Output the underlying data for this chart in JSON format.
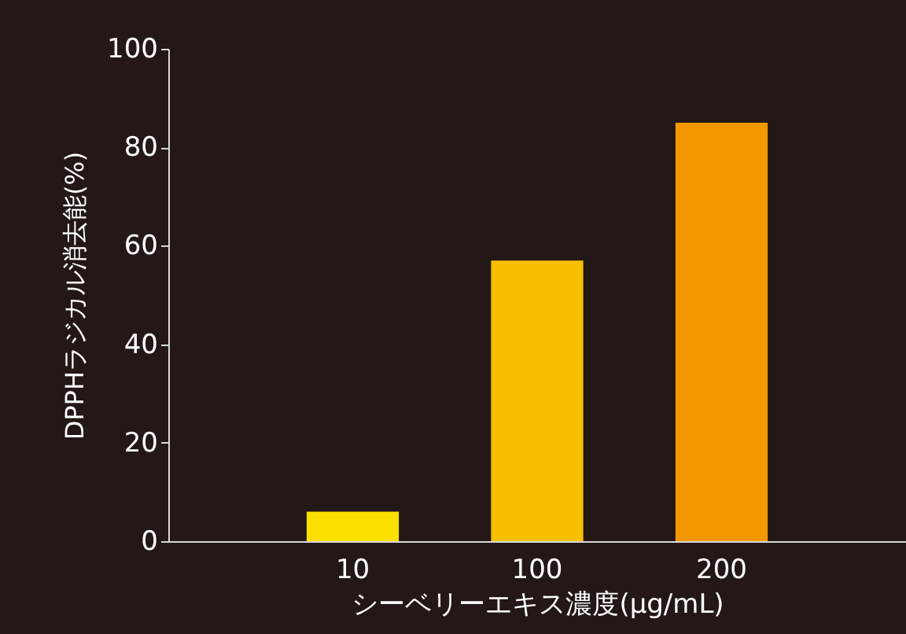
{
  "chart_data": {
    "type": "bar",
    "xlabel": "シーベリーエキス濃度(μg/mL)",
    "ylabel": "DPPHラジカル消去能(%)",
    "categories": [
      "10",
      "100",
      "200"
    ],
    "values": [
      6,
      57,
      85
    ],
    "colors": [
      "#fce000",
      "#f8be00",
      "#f39800"
    ],
    "ylim": [
      0,
      100
    ],
    "yticks": [
      0,
      20,
      40,
      60,
      80,
      100
    ],
    "grid": false
  }
}
